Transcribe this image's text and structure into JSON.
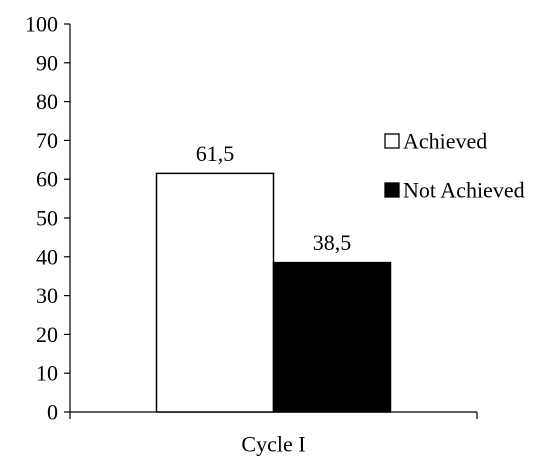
{
  "chart_data": {
    "type": "bar",
    "categories": [
      "Cycle I"
    ],
    "series": [
      {
        "name": "Achieved",
        "values": [
          61.5
        ],
        "value_labels": [
          "61,5"
        ],
        "color": "#ffffff",
        "stroke": "#000000"
      },
      {
        "name": "Not Achieved",
        "values": [
          38.5
        ],
        "value_labels": [
          "38,5"
        ],
        "color": "#000000",
        "stroke": "#000000"
      }
    ],
    "ylim": [
      0,
      100
    ],
    "yticks": [
      "0",
      "10",
      "20",
      "30",
      "40",
      "50",
      "60",
      "70",
      "80",
      "90",
      "100"
    ],
    "grid": false,
    "legend_position": "right",
    "title": "",
    "xlabel": "",
    "ylabel": ""
  }
}
